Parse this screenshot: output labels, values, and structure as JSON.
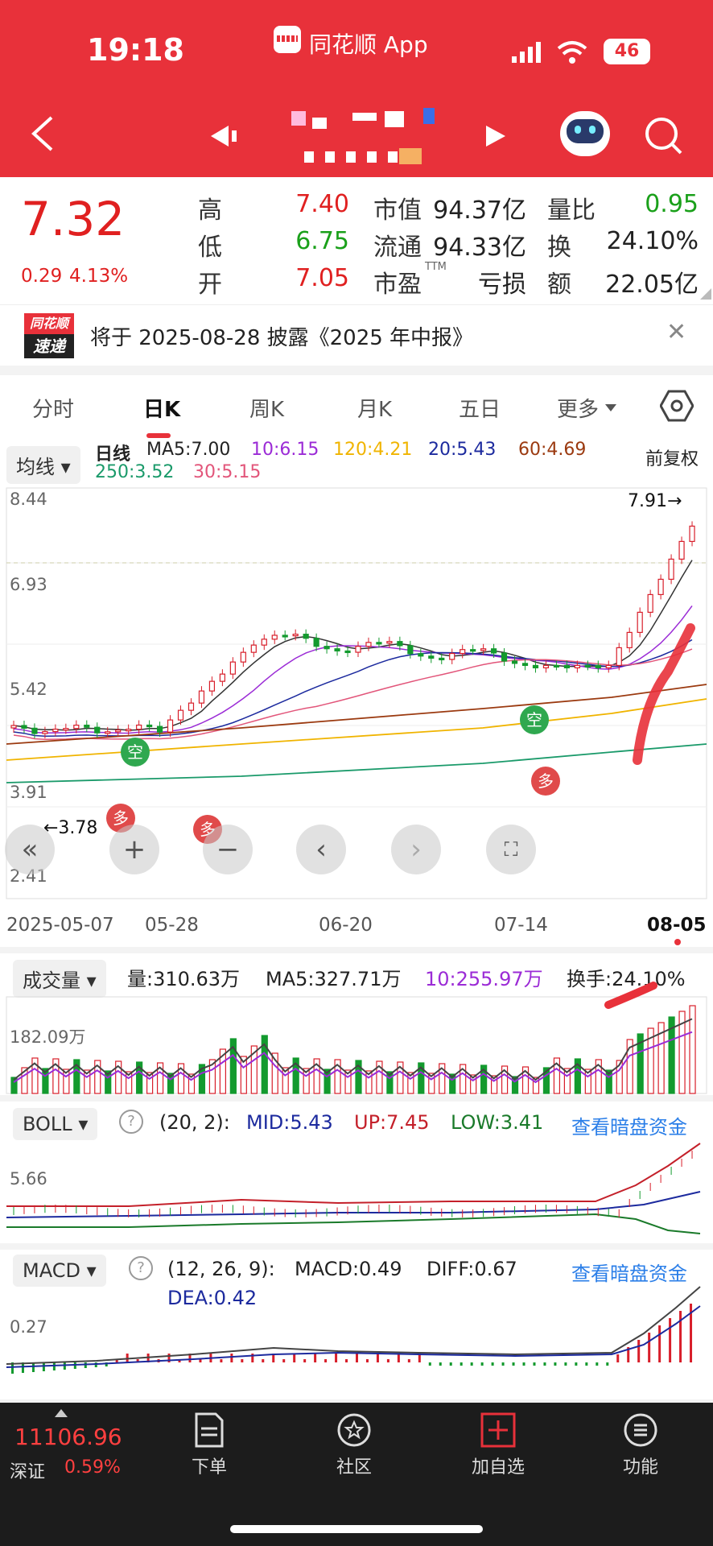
{
  "status": {
    "time": "19:18",
    "app": "同花顺 App",
    "network": "4G",
    "battery": "46"
  },
  "nav": {
    "prev_icon": "triangle-left-icon",
    "next_icon": "triangle-right-icon"
  },
  "quote": {
    "price": "7.32",
    "change": "0.29",
    "change_pct": "4.13%",
    "rows": [
      {
        "l1": "高",
        "v1": "7.40",
        "l2": "市值",
        "v2": "94.37亿",
        "l3": "量比",
        "v3": "0.95"
      },
      {
        "l1": "低",
        "v1": "6.75",
        "l2": "流通",
        "v2": "94.33亿",
        "l3": "换",
        "v3": "24.10%"
      },
      {
        "l1": "开",
        "v1": "7.05",
        "l2": "市盈",
        "v2": "亏损",
        "l3": "额",
        "v3": "22.05亿"
      }
    ],
    "pe_sup": "TTM"
  },
  "notice": {
    "logo_top": "同花顺",
    "logo_bottom": "速递",
    "text": "将于 2025-08-28 披露《2025 年中报》"
  },
  "tabs": [
    "分时",
    "日K",
    "周K",
    "月K",
    "五日",
    "更多"
  ],
  "kline": {
    "indicator": "均线",
    "legend": [
      {
        "text": "日线",
        "color": "#222"
      },
      {
        "text": "MA5:7.00",
        "color": "#222"
      },
      {
        "text": "10:6.15",
        "color": "#9b2bd6"
      },
      {
        "text": "120:4.21",
        "color": "#f0b400"
      },
      {
        "text": "20:5.43",
        "color": "#1c2a9e"
      },
      {
        "text": "60:4.69",
        "color": "#9b3a10"
      },
      {
        "text": "250:3.52",
        "color": "#1a9a6a"
      },
      {
        "text": "30:5.15",
        "color": "#e2557a"
      }
    ],
    "adjust": "前复权",
    "y_labels": [
      "8.44",
      "6.93",
      "5.42",
      "3.91",
      "2.41"
    ],
    "high_mark": "7.91→",
    "low_mark": "←3.78",
    "dates": [
      "2025-05-07",
      "05-28",
      "06-20",
      "07-14",
      "08-05"
    ],
    "signals": {
      "empty": "空",
      "long": "多"
    }
  },
  "volume": {
    "indicator": "成交量",
    "text1": "量:310.63万",
    "text2": "MA5:327.71万",
    "text3": "10:255.97万",
    "text4": "换手:24.10%",
    "y_label": "182.09万"
  },
  "boll": {
    "indicator": "BOLL",
    "params": "(20, 2):",
    "mid": "MID:5.43",
    "up": "UP:7.45",
    "low": "LOW:3.41",
    "link": "查看暗盘资金",
    "y_label": "5.66"
  },
  "macd": {
    "indicator": "MACD",
    "params": "(12, 26, 9):",
    "macd": "MACD:0.49",
    "diff": "DIFF:0.67",
    "dea": "DEA:0.42",
    "link": "查看暗盘资金",
    "y_label": "0.27"
  },
  "bottom": {
    "index_value": "11106.96",
    "index_name": "深证",
    "index_pct": "0.59%",
    "items": [
      "下单",
      "社区",
      "加自选",
      "功能"
    ]
  }
}
